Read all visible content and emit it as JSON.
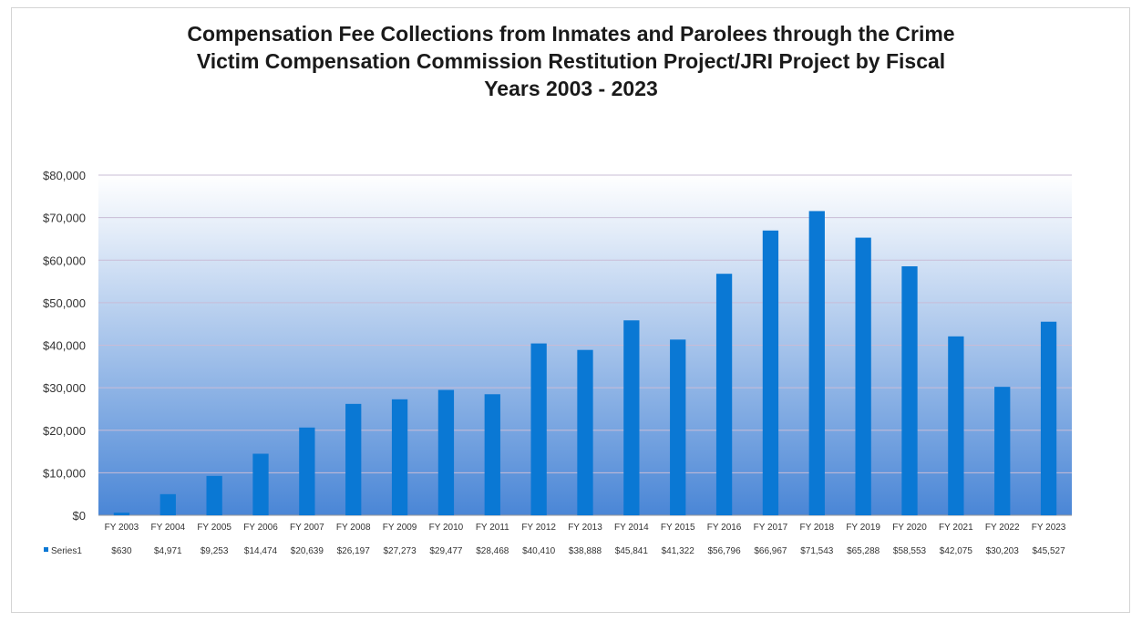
{
  "chart_data": {
    "type": "bar",
    "title_lines": [
      "Compensation Fee Collections from Inmates and Parolees through the Crime",
      "Victim Compensation Commission Restitution Project/JRI Project by Fiscal",
      "Years 2003 - 2023"
    ],
    "categories": [
      "FY 2003",
      "FY 2004",
      "FY 2005",
      "FY 2006",
      "FY 2007",
      "FY 2008",
      "FY 2009",
      "FY 2010",
      "FY 2011",
      "FY 2012",
      "FY 2013",
      "FY 2014",
      "FY 2015",
      "FY 2016",
      "FY 2017",
      "FY 2018",
      "FY 2019",
      "FY 2020",
      "FY 2021",
      "FY 2022",
      "FY 2023"
    ],
    "series": [
      {
        "name": "Series1",
        "values": [
          630,
          4971,
          9253,
          14474,
          20639,
          26197,
          27273,
          29477,
          28468,
          40410,
          38888,
          45841,
          41322,
          56796,
          66967,
          71543,
          65288,
          58553,
          42075,
          30203,
          45527
        ],
        "labels": [
          "$630",
          "$4,971",
          "$9,253",
          "$14,474",
          "$20,639",
          "$26,197",
          "$27,273",
          "$29,477",
          "$28,468",
          "$40,410",
          "$38,888",
          "$45,841",
          "$41,322",
          "$56,796",
          "$66,967",
          "$71,543",
          "$65,288",
          "$58,553",
          "$42,075",
          "$30,203",
          "$45,527"
        ]
      }
    ],
    "ylim": [
      0,
      80000
    ],
    "yticks": [
      0,
      10000,
      20000,
      30000,
      40000,
      50000,
      60000,
      70000,
      80000
    ],
    "ytick_labels": [
      "$0",
      "$10,000",
      "$20,000",
      "$30,000",
      "$40,000",
      "$50,000",
      "$60,000",
      "$70,000",
      "$80,000"
    ],
    "grid": true,
    "legend": "data-table-below",
    "colors": {
      "bar": "#0a78d4",
      "grid": "#c9bcd6",
      "plot_gradient_top": "#ffffff",
      "plot_gradient_bottom": "#4a86d6"
    }
  }
}
